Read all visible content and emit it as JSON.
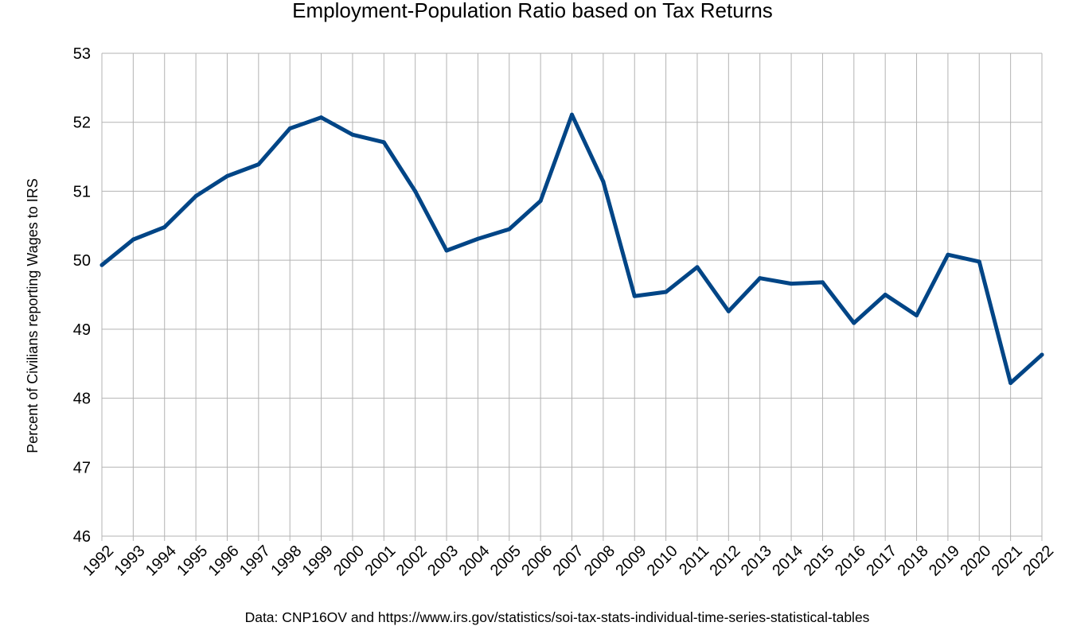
{
  "chart_data": {
    "type": "line",
    "title": "Employment-Population Ratio based on Tax Returns",
    "ylabel": "Percent of Civilians reporting Wages to IRS",
    "xlabel": "",
    "source": "Data: CNP16OV and https://www.irs.gov/statistics/soi-tax-stats-individual-time-series-statistical-tables",
    "ylim": [
      46,
      53
    ],
    "yticks": [
      "46",
      "47",
      "48",
      "49",
      "50",
      "51",
      "52",
      "53"
    ],
    "grid": true,
    "line_color": "#004586",
    "categories": [
      "1992",
      "1993",
      "1994",
      "1995",
      "1996",
      "1997",
      "1998",
      "1999",
      "2000",
      "2001",
      "2002",
      "2003",
      "2004",
      "2005",
      "2006",
      "2007",
      "2008",
      "2009",
      "2010",
      "2011",
      "2012",
      "2013",
      "2014",
      "2015",
      "2016",
      "2017",
      "2018",
      "2019",
      "2020",
      "2021",
      "2022"
    ],
    "series": [
      {
        "values": [
          49.93,
          50.3,
          50.48,
          50.93,
          51.22,
          51.39,
          51.91,
          52.07,
          51.82,
          51.71,
          51.0,
          50.14,
          50.31,
          50.45,
          50.86,
          52.11,
          51.14,
          49.48,
          49.54,
          49.9,
          49.26,
          49.74,
          49.66,
          49.68,
          49.09,
          49.5,
          49.2,
          50.08,
          49.98,
          48.22,
          48.63
        ]
      }
    ]
  }
}
